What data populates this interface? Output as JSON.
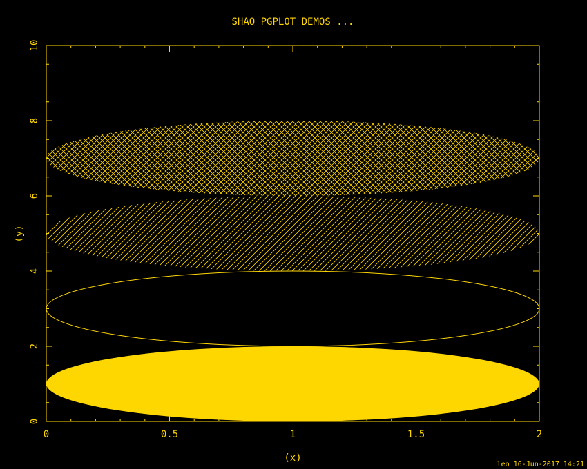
{
  "colors": {
    "background": "#000000",
    "foreground": "#ffd700"
  },
  "chart_data": {
    "type": "area",
    "title": "SHAO PGPLOT DEMOS ...",
    "xlabel": "(x)",
    "ylabel": "(y)",
    "xlim": [
      0,
      2
    ],
    "ylim": [
      0,
      10
    ],
    "x_ticks": [
      0,
      0.5,
      1,
      1.5,
      2
    ],
    "x_tick_labels": [
      "0",
      "0.5",
      "1",
      "1.5",
      "2"
    ],
    "y_ticks": [
      0,
      2,
      4,
      6,
      8,
      10
    ],
    "y_tick_labels": [
      "0",
      "2",
      "4",
      "6",
      "8",
      "10"
    ],
    "x_minor_step": 0.1,
    "y_minor_step": 0.5,
    "grid": false,
    "ellipses": [
      {
        "cx": 1,
        "cy": 1,
        "rx": 1,
        "ry": 1,
        "fill": "solid"
      },
      {
        "cx": 1,
        "cy": 3,
        "rx": 1,
        "ry": 1,
        "fill": "outline"
      },
      {
        "cx": 1,
        "cy": 5,
        "rx": 1,
        "ry": 1,
        "fill": "hatched"
      },
      {
        "cx": 1,
        "cy": 7,
        "rx": 1,
        "ry": 1,
        "fill": "cross-hatched"
      }
    ],
    "footer": "leo 16-Jun-2017 14:21"
  }
}
